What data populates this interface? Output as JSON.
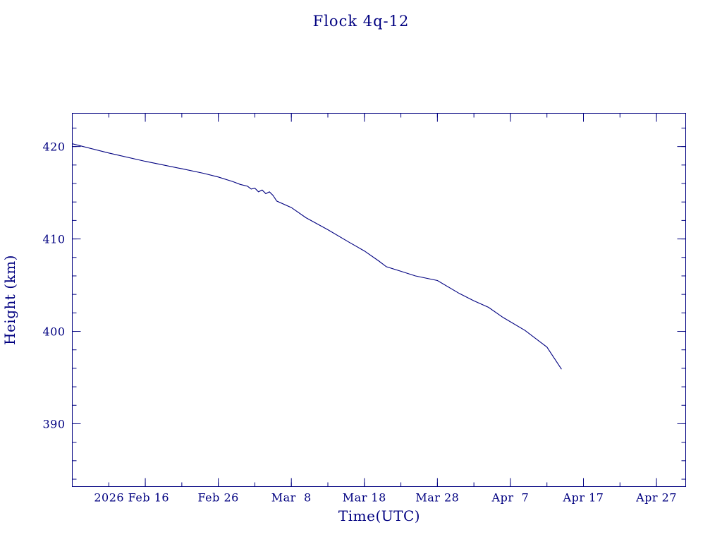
{
  "chart_data": {
    "type": "line",
    "title": "Flock 4q-12",
    "xlabel": "Time(UTC)",
    "ylabel": "Height (km)",
    "xlim": [
      "2026-02-06",
      "2026-05-01"
    ],
    "ylim": [
      383.2,
      423.6
    ],
    "x_ticks": [
      "2026-02-16",
      "2026-02-26",
      "2026-03-08",
      "2026-03-18",
      "2026-03-28",
      "2026-04-07",
      "2026-04-17",
      "2026-04-27"
    ],
    "x_tick_labels": [
      "2026 Feb 16",
      "Feb 26",
      "Mar  8",
      "Mar 18",
      "Mar 28",
      "Apr  7",
      "Apr 17",
      "Apr 27"
    ],
    "y_ticks": [
      390,
      400,
      410,
      420
    ],
    "y_tick_labels": [
      "390",
      "400",
      "410",
      "420"
    ],
    "grid": false,
    "legend": "none",
    "color": "#000080",
    "series": [
      {
        "x": [
          "2026-02-06",
          "2026-02-11",
          "2026-02-16",
          "2026-02-21",
          "2026-02-24",
          "2026-02-26",
          "2026-02-28",
          "2026-03-01",
          "2026-03-02",
          "2026-03-02",
          "2026-03-03",
          "2026-03-03",
          "2026-03-04",
          "2026-03-04",
          "2026-03-05",
          "2026-03-05",
          "2026-03-06",
          "2026-03-08",
          "2026-03-10",
          "2026-03-13",
          "2026-03-16",
          "2026-03-18",
          "2026-03-20",
          "2026-03-21",
          "2026-03-23",
          "2026-03-25",
          "2026-03-28",
          "2026-03-31",
          "2026-04-02",
          "2026-04-04",
          "2026-04-06",
          "2026-04-09",
          "2026-04-12",
          "2026-04-14"
        ],
        "y": [
          420.3,
          419.3,
          418.4,
          417.6,
          417.1,
          416.7,
          416.2,
          415.9,
          415.7,
          415.4,
          415.5,
          415.1,
          415.3,
          414.9,
          415.1,
          414.7,
          414.1,
          413.4,
          412.3,
          411.0,
          409.6,
          408.7,
          407.6,
          407.0,
          406.5,
          406.0,
          405.5,
          404.1,
          403.3,
          402.6,
          401.5,
          400.1,
          398.3,
          395.9
        ]
      }
    ]
  }
}
